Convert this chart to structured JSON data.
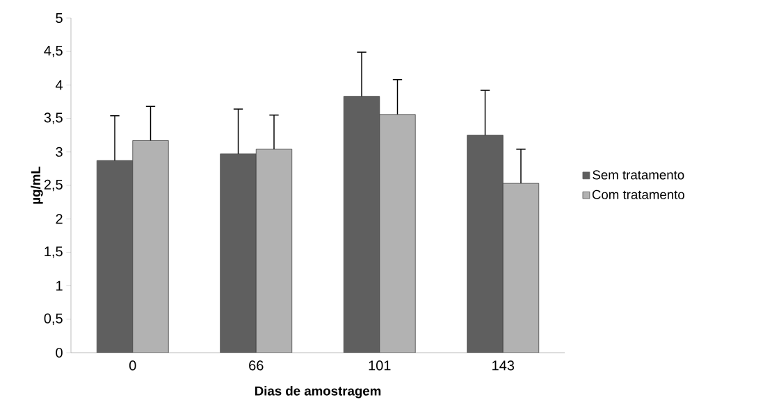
{
  "chart_data": {
    "type": "bar",
    "xlabel": "Dias de amostragem",
    "ylabel": "µg/mL",
    "categories": [
      "0",
      "66",
      "101",
      "143"
    ],
    "series": [
      {
        "name": "Sem tratamento",
        "color": "#5f5f5f",
        "values": [
          2.87,
          2.97,
          3.83,
          3.25
        ],
        "errors": [
          [
            2.87,
            3.54
          ],
          [
            2.97,
            3.64
          ],
          [
            3.83,
            4.49
          ],
          [
            3.25,
            3.92
          ]
        ]
      },
      {
        "name": "Com tratamento",
        "color": "#b2b2b2",
        "values": [
          3.17,
          3.04,
          3.56,
          2.53
        ],
        "errors": [
          [
            3.17,
            3.68
          ],
          [
            3.04,
            3.55
          ],
          [
            3.56,
            4.08
          ],
          [
            2.53,
            3.04
          ]
        ]
      }
    ],
    "ylim": [
      0,
      5
    ],
    "yticks": [
      0,
      {
        "value": 0.5,
        "label": "0,5"
      },
      1,
      {
        "value": 1.5,
        "label": "1,5"
      },
      2,
      {
        "value": 2.5,
        "label": "2,5"
      },
      3,
      {
        "value": 3.5,
        "label": "3,5"
      },
      4,
      {
        "value": 4.5,
        "label": "4,5"
      },
      5
    ],
    "legend": "right"
  }
}
